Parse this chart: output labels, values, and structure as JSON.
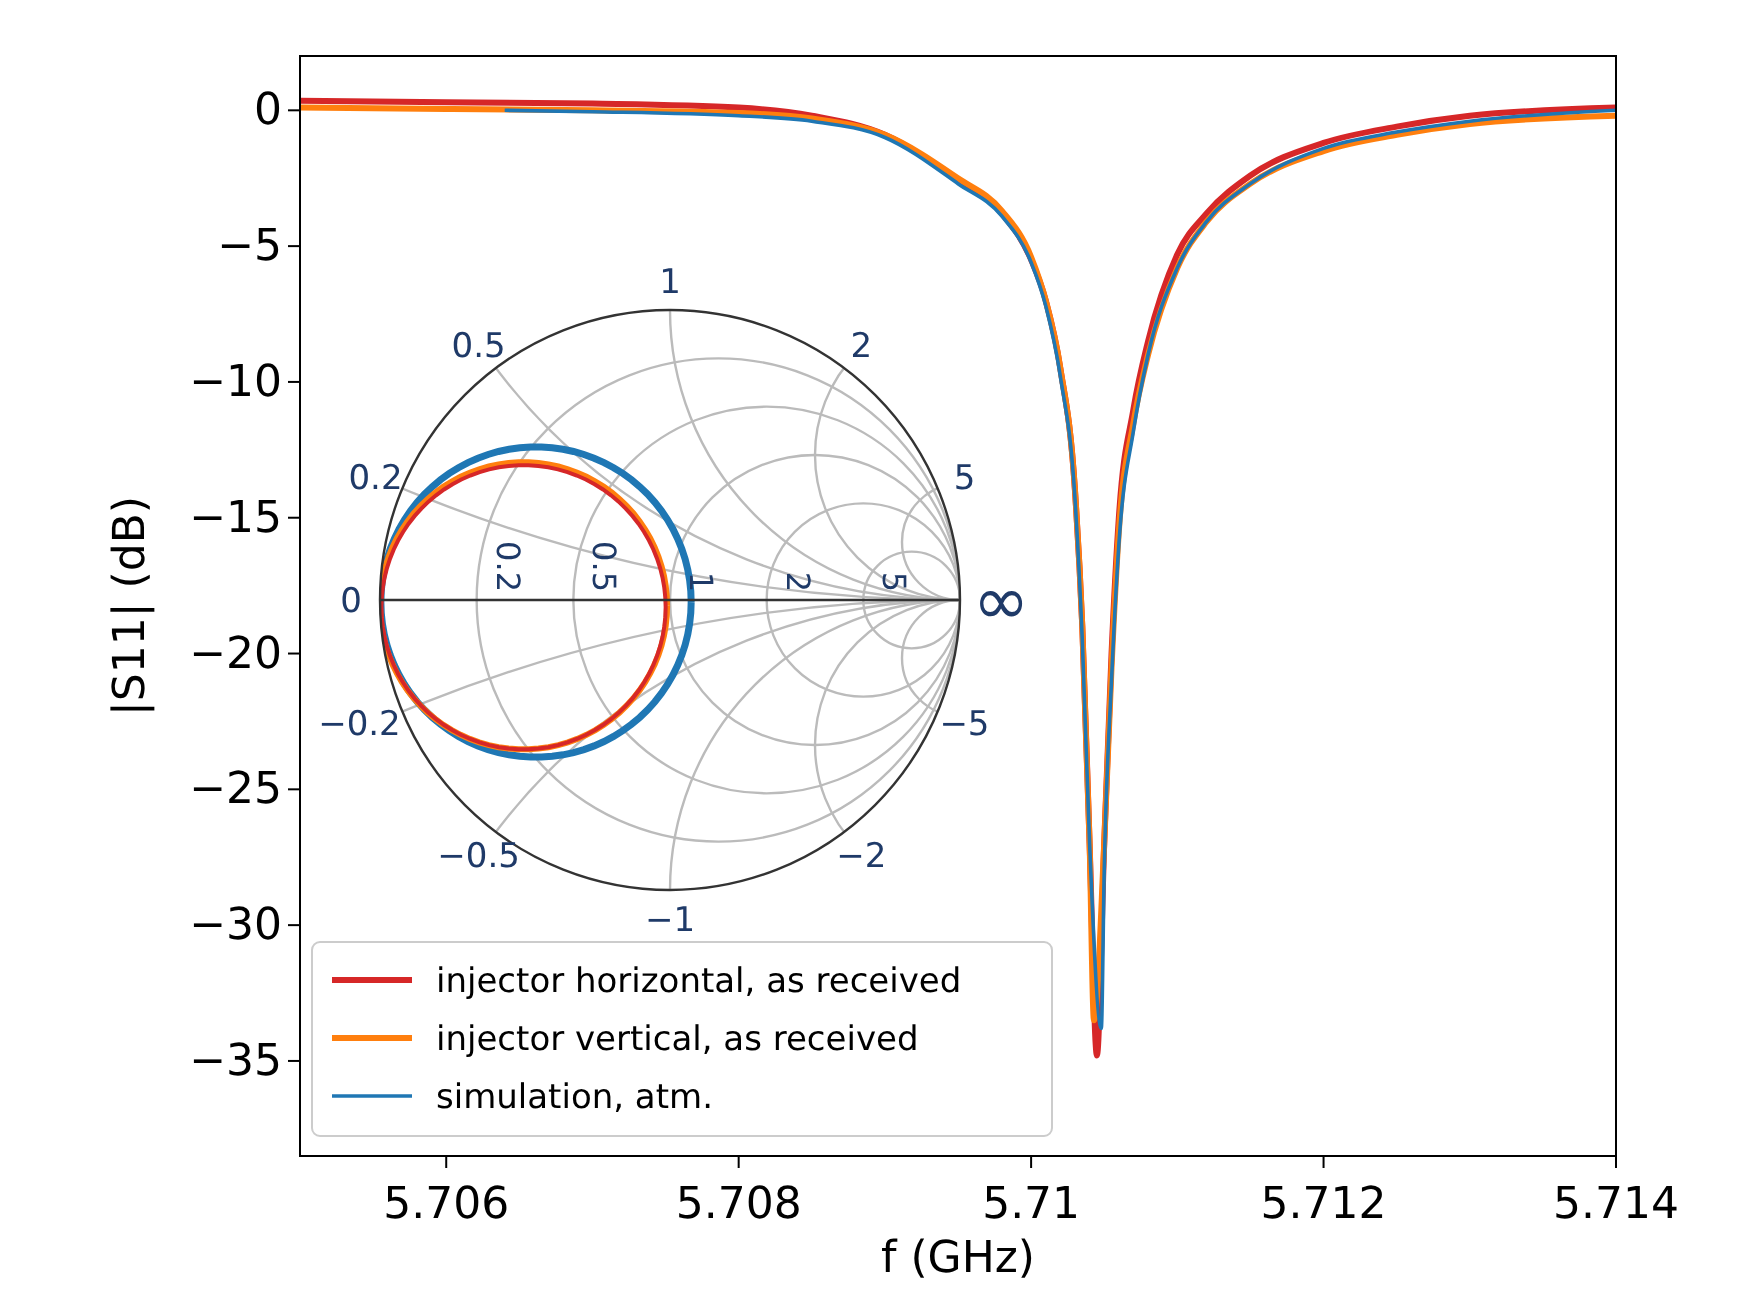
{
  "chart_data": [
    {
      "type": "line",
      "xlabel": "f (GHz)",
      "ylabel": "|S11| (dB)",
      "xlim": [
        5.705,
        5.714
      ],
      "ylim": [
        -38.5,
        2
      ],
      "xticks": [
        5.706,
        5.708,
        5.71,
        5.712,
        5.714
      ],
      "yticks": [
        0,
        -5,
        -10,
        -15,
        -20,
        -25,
        -30,
        -35
      ],
      "grid": false,
      "legend": "bottom left",
      "series": [
        {
          "name": "injector horizontal, as received",
          "color": "#d62728",
          "x": [
            5.705,
            5.706,
            5.707,
            5.708,
            5.7085,
            5.709,
            5.7095,
            5.7098,
            5.71,
            5.7101,
            5.7102,
            5.7103,
            5.71035,
            5.7104,
            5.71045,
            5.7105,
            5.71055,
            5.7106,
            5.7107,
            5.7108,
            5.711,
            5.7112,
            5.7115,
            5.712,
            5.7125,
            5.713,
            5.714
          ],
          "values": [
            0.35,
            0.3,
            0.25,
            0.1,
            -0.2,
            -0.9,
            -2.6,
            -3.8,
            -5.5,
            -7,
            -9.5,
            -14,
            -19,
            -27,
            -34.8,
            -27,
            -20,
            -15,
            -11,
            -8.5,
            -5.3,
            -3.8,
            -2.4,
            -1.2,
            -0.6,
            -0.2,
            0.1
          ]
        },
        {
          "name": "injector vertical, as received",
          "color": "#ff7f0e",
          "x": [
            5.705,
            5.706,
            5.707,
            5.708,
            5.7085,
            5.709,
            5.7095,
            5.7098,
            5.71,
            5.7101,
            5.7102,
            5.7103,
            5.71035,
            5.7104,
            5.71043,
            5.7105,
            5.71055,
            5.7106,
            5.7107,
            5.7108,
            5.711,
            5.7112,
            5.7115,
            5.712,
            5.7125,
            5.713,
            5.714
          ],
          "values": [
            0.1,
            0.05,
            0,
            -0.1,
            -0.3,
            -0.9,
            -2.5,
            -3.7,
            -5.4,
            -7,
            -9.5,
            -14,
            -19,
            -27,
            -33.5,
            -27,
            -20.5,
            -15.5,
            -11.5,
            -9,
            -5.8,
            -4.1,
            -2.7,
            -1.5,
            -0.9,
            -0.5,
            -0.2
          ]
        },
        {
          "name": "simulation, atm.",
          "color": "#1f77b4",
          "x": [
            5.7064,
            5.707,
            5.708,
            5.7085,
            5.709,
            5.7095,
            5.7098,
            5.71,
            5.7101,
            5.7102,
            5.7103,
            5.71035,
            5.7104,
            5.71048,
            5.7105,
            5.71055,
            5.7106,
            5.7107,
            5.7108,
            5.711,
            5.7112,
            5.7115,
            5.712,
            5.7125,
            5.713,
            5.714
          ],
          "values": [
            0,
            -0.05,
            -0.2,
            -0.4,
            -1,
            -2.7,
            -3.9,
            -5.6,
            -7.2,
            -9.8,
            -14.3,
            -19.5,
            -27,
            -33.8,
            -28,
            -21,
            -16,
            -11.8,
            -9,
            -5.8,
            -4.1,
            -2.7,
            -1.4,
            -0.8,
            -0.4,
            0
          ]
        }
      ]
    },
    {
      "type": "other",
      "annotations": [
        "1",
        "0.5",
        "2",
        "0.2",
        "5",
        "0",
        "∞",
        "−0.2",
        "−5",
        "−0.5",
        "−2",
        "−1",
        "0.2",
        "0.5",
        "1",
        "2",
        "5"
      ]
    }
  ]
}
